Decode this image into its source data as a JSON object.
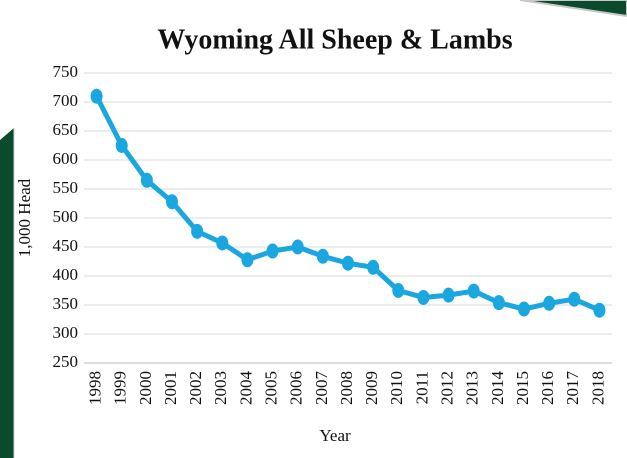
{
  "chart_data": {
    "type": "line",
    "title": "Wyoming All Sheep & Lambs",
    "x_label": "Year",
    "y_label": "1,000 Head",
    "categories": [
      "1998",
      "1999",
      "2000",
      "2001",
      "2002",
      "2003",
      "2004",
      "2005",
      "2006",
      "2007",
      "2008",
      "2009",
      "2010",
      "2011",
      "2012",
      "2013",
      "2014",
      "2015",
      "2016",
      "2017",
      "2018"
    ],
    "series": [
      {
        "name": "All Sheep & Lambs",
        "color": "#1aa7e0",
        "values": [
          710,
          625,
          565,
          528,
          477,
          457,
          428,
          443,
          450,
          434,
          422,
          415,
          375,
          363,
          367,
          374,
          354,
          343,
          353,
          360,
          341
        ]
      }
    ],
    "ylim": [
      250,
      750
    ],
    "yticks": [
      250,
      300,
      350,
      400,
      450,
      500,
      550,
      600,
      650,
      700,
      750
    ],
    "grid": true
  }
}
